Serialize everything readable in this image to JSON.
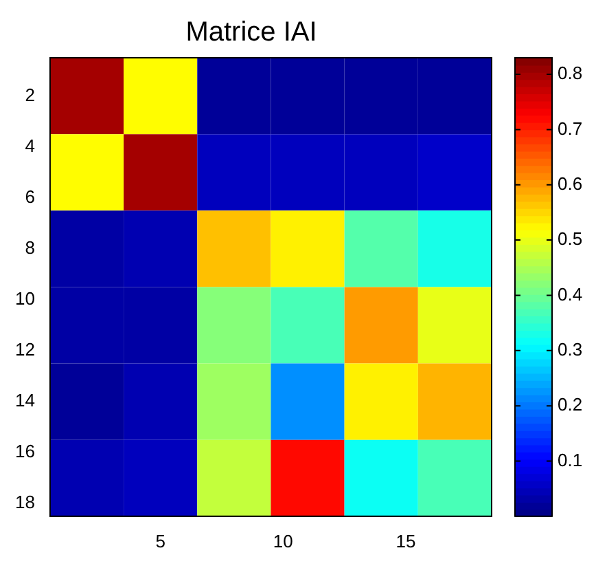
{
  "chart_data": {
    "type": "heatmap",
    "title": "Matrice IAI",
    "x": [
      2,
      5,
      8,
      11,
      14,
      17
    ],
    "y": [
      2,
      5,
      8,
      11,
      14,
      17
    ],
    "xlim": [
      0.5,
      18.5
    ],
    "ylim": [
      18.5,
      0.5
    ],
    "xticks": [
      5,
      10,
      15
    ],
    "yticks": [
      2,
      4,
      6,
      8,
      10,
      12,
      14,
      16,
      18
    ],
    "cells": [
      [
        0.8,
        0.52,
        0.02,
        0.02,
        0.02,
        0.02
      ],
      [
        0.52,
        0.8,
        0.05,
        0.05,
        0.05,
        0.06
      ],
      [
        0.03,
        0.04,
        0.57,
        0.53,
        0.38,
        0.33
      ],
      [
        0.03,
        0.03,
        0.42,
        0.37,
        0.6,
        0.5
      ],
      [
        0.02,
        0.04,
        0.44,
        0.22,
        0.53,
        0.58
      ],
      [
        0.04,
        0.05,
        0.47,
        0.72,
        0.32,
        0.37
      ]
    ],
    "clim": [
      0,
      0.83
    ],
    "cticks": [
      0.1,
      0.2,
      0.3,
      0.4,
      0.5,
      0.6,
      0.7,
      0.8
    ]
  }
}
